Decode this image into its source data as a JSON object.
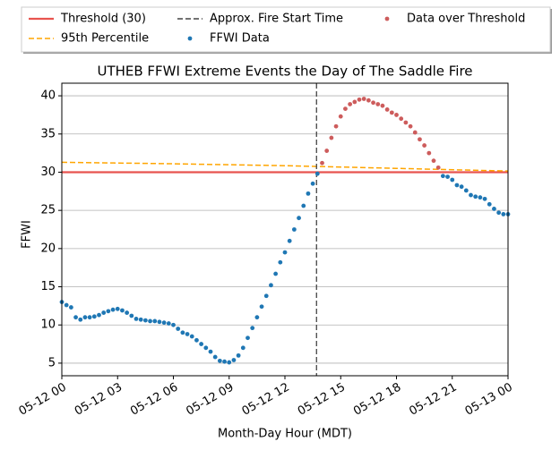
{
  "chart_data": {
    "type": "scatter",
    "title": "UTHEB FFWI Extreme Events the Day of The Saddle Fire",
    "xlabel": "Month-Day Hour (MDT)",
    "ylabel": "FFWI",
    "xlim": [
      0,
      24
    ],
    "ylim": [
      3.35,
      41.65
    ],
    "xticks": [
      {
        "value": 0,
        "label": "05-12 00"
      },
      {
        "value": 3,
        "label": "05-12 03"
      },
      {
        "value": 6,
        "label": "05-12 06"
      },
      {
        "value": 9,
        "label": "05-12 09"
      },
      {
        "value": 12,
        "label": "05-12 12"
      },
      {
        "value": 15,
        "label": "05-12 15"
      },
      {
        "value": 18,
        "label": "05-12 18"
      },
      {
        "value": 21,
        "label": "05-12 21"
      },
      {
        "value": 24,
        "label": "05-13 00"
      }
    ],
    "yticks": [
      5,
      10,
      15,
      20,
      25,
      30,
      35,
      40
    ],
    "grid": "y",
    "legend": "top",
    "series": [
      {
        "name": "Threshold (30)",
        "type": "line",
        "style": "solid",
        "color": "#e8534f",
        "x": [
          0,
          24
        ],
        "values": [
          30,
          30
        ]
      },
      {
        "name": "95th Percentile",
        "type": "line",
        "style": "dashed",
        "color": "#ffa500",
        "x": [
          0,
          6,
          12,
          18,
          24
        ],
        "values": [
          31.3,
          31.1,
          30.85,
          30.5,
          30.15
        ]
      },
      {
        "name": "Approx. Fire Start Time",
        "type": "vline",
        "style": "dashed",
        "color": "#444444",
        "x": [
          13.7
        ]
      },
      {
        "name": "FFWI Data",
        "type": "scatter",
        "color": "#1f77b4",
        "x": [
          0,
          0.25,
          0.5,
          0.75,
          1,
          1.25,
          1.5,
          1.75,
          2,
          2.25,
          2.5,
          2.75,
          3,
          3.25,
          3.5,
          3.75,
          4,
          4.25,
          4.5,
          4.75,
          5,
          5.25,
          5.5,
          5.75,
          6,
          6.25,
          6.5,
          6.75,
          7,
          7.25,
          7.5,
          7.75,
          8,
          8.25,
          8.5,
          8.75,
          9,
          9.25,
          9.5,
          9.75,
          10,
          10.25,
          10.5,
          10.75,
          11,
          11.25,
          11.5,
          11.75,
          12,
          12.25,
          12.5,
          12.75,
          13,
          13.25,
          13.5,
          13.75,
          20.5,
          20.75,
          21,
          21.25,
          21.5,
          21.75,
          22,
          22.25,
          22.5,
          22.75,
          23,
          23.25,
          23.5,
          23.75,
          24
        ],
        "values": [
          13.0,
          12.6,
          12.3,
          11.0,
          10.7,
          11.0,
          11.0,
          11.1,
          11.3,
          11.6,
          11.8,
          12.0,
          12.1,
          11.9,
          11.6,
          11.2,
          10.8,
          10.7,
          10.6,
          10.5,
          10.5,
          10.4,
          10.3,
          10.2,
          10.0,
          9.5,
          9.0,
          8.8,
          8.5,
          8.0,
          7.5,
          7.0,
          6.5,
          5.8,
          5.3,
          5.2,
          5.1,
          5.4,
          6.0,
          7.0,
          8.3,
          9.6,
          11.0,
          12.4,
          13.8,
          15.2,
          16.7,
          18.2,
          19.5,
          21.0,
          22.5,
          24.0,
          25.6,
          27.2,
          28.5,
          29.8,
          29.5,
          29.4,
          29.0,
          28.3,
          28.1,
          27.6,
          27.0,
          26.8,
          26.7,
          26.5,
          25.8,
          25.2,
          24.7,
          24.5,
          24.5
        ]
      },
      {
        "name": "Data over Threshold",
        "type": "scatter",
        "color": "#cd5c5c",
        "x": [
          14,
          14.25,
          14.5,
          14.75,
          15,
          15.25,
          15.5,
          15.75,
          16,
          16.25,
          16.5,
          16.75,
          17,
          17.25,
          17.5,
          17.75,
          18,
          18.25,
          18.5,
          18.75,
          19,
          19.25,
          19.5,
          19.75,
          20,
          20.25
        ],
        "values": [
          31.2,
          32.8,
          34.5,
          36.0,
          37.3,
          38.3,
          38.9,
          39.2,
          39.5,
          39.6,
          39.4,
          39.1,
          38.9,
          38.7,
          38.2,
          37.8,
          37.5,
          37.0,
          36.5,
          36.0,
          35.2,
          34.3,
          33.5,
          32.5,
          31.5,
          30.6
        ]
      }
    ]
  }
}
